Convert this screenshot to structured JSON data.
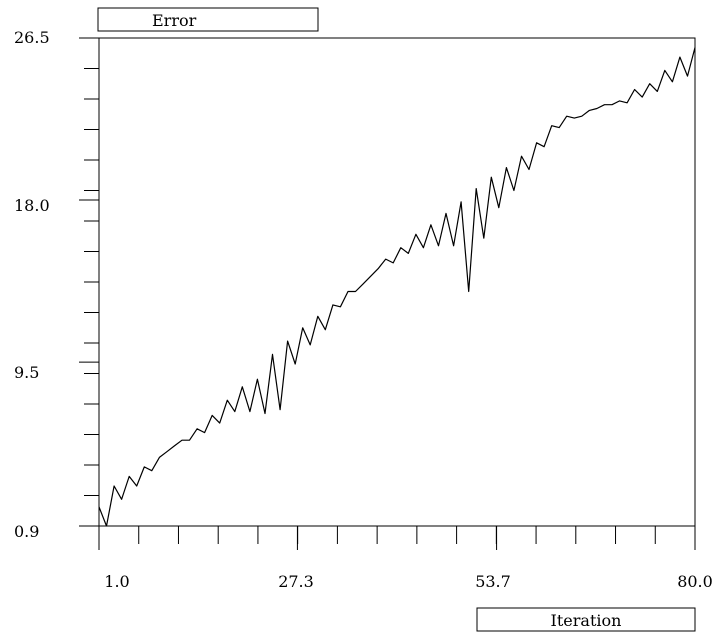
{
  "chart_data": {
    "type": "line",
    "title": "",
    "ylabel": "Error",
    "xlabel": "Iteration",
    "xlim": [
      1.0,
      80.0
    ],
    "ylim": [
      0.9,
      26.5
    ],
    "x_tick_labels": [
      "1.0",
      "27.3",
      "53.7",
      "80.0"
    ],
    "y_tick_labels": [
      "0.9",
      "9.5",
      "18.0",
      "26.5"
    ],
    "grid": false,
    "series": [
      {
        "color": "#000000",
        "x": [
          1,
          2,
          3,
          4,
          5,
          6,
          7,
          8,
          9,
          10,
          11,
          12,
          13,
          14,
          15,
          16,
          17,
          18,
          19,
          20,
          21,
          22,
          23,
          24,
          25,
          26,
          27,
          28,
          29,
          30,
          31,
          32,
          33,
          34,
          35,
          36,
          37,
          38,
          39,
          40,
          41,
          42,
          43,
          44,
          45,
          46,
          47,
          48,
          49,
          50,
          51,
          52,
          53,
          54,
          55,
          56,
          57,
          58,
          59,
          60,
          61,
          62,
          63,
          64,
          65,
          66,
          67,
          68,
          69,
          70,
          71,
          72,
          73,
          74,
          75,
          76,
          77,
          78,
          79,
          80
        ],
        "y": [
          1.9,
          0.9,
          3.0,
          2.3,
          3.5,
          3.0,
          4.0,
          3.8,
          4.5,
          4.8,
          5.1,
          5.4,
          5.4,
          6.0,
          5.8,
          6.7,
          6.3,
          7.5,
          6.9,
          8.2,
          6.9,
          8.6,
          6.8,
          9.9,
          7.0,
          10.6,
          9.4,
          11.3,
          10.4,
          11.9,
          11.2,
          12.5,
          12.4,
          13.2,
          13.2,
          13.6,
          14.0,
          14.4,
          14.9,
          14.7,
          15.5,
          15.2,
          16.2,
          15.5,
          16.7,
          15.6,
          17.3,
          15.6,
          17.9,
          13.2,
          18.6,
          16.0,
          19.2,
          17.6,
          19.7,
          18.5,
          20.3,
          19.6,
          21.0,
          20.8,
          21.9,
          21.8,
          22.4,
          22.3,
          22.4,
          22.7,
          22.8,
          23.0,
          23.0,
          23.2,
          23.1,
          23.8,
          23.4,
          24.1,
          23.7,
          24.8,
          24.2,
          25.5,
          24.5,
          26.0
        ]
      }
    ]
  }
}
